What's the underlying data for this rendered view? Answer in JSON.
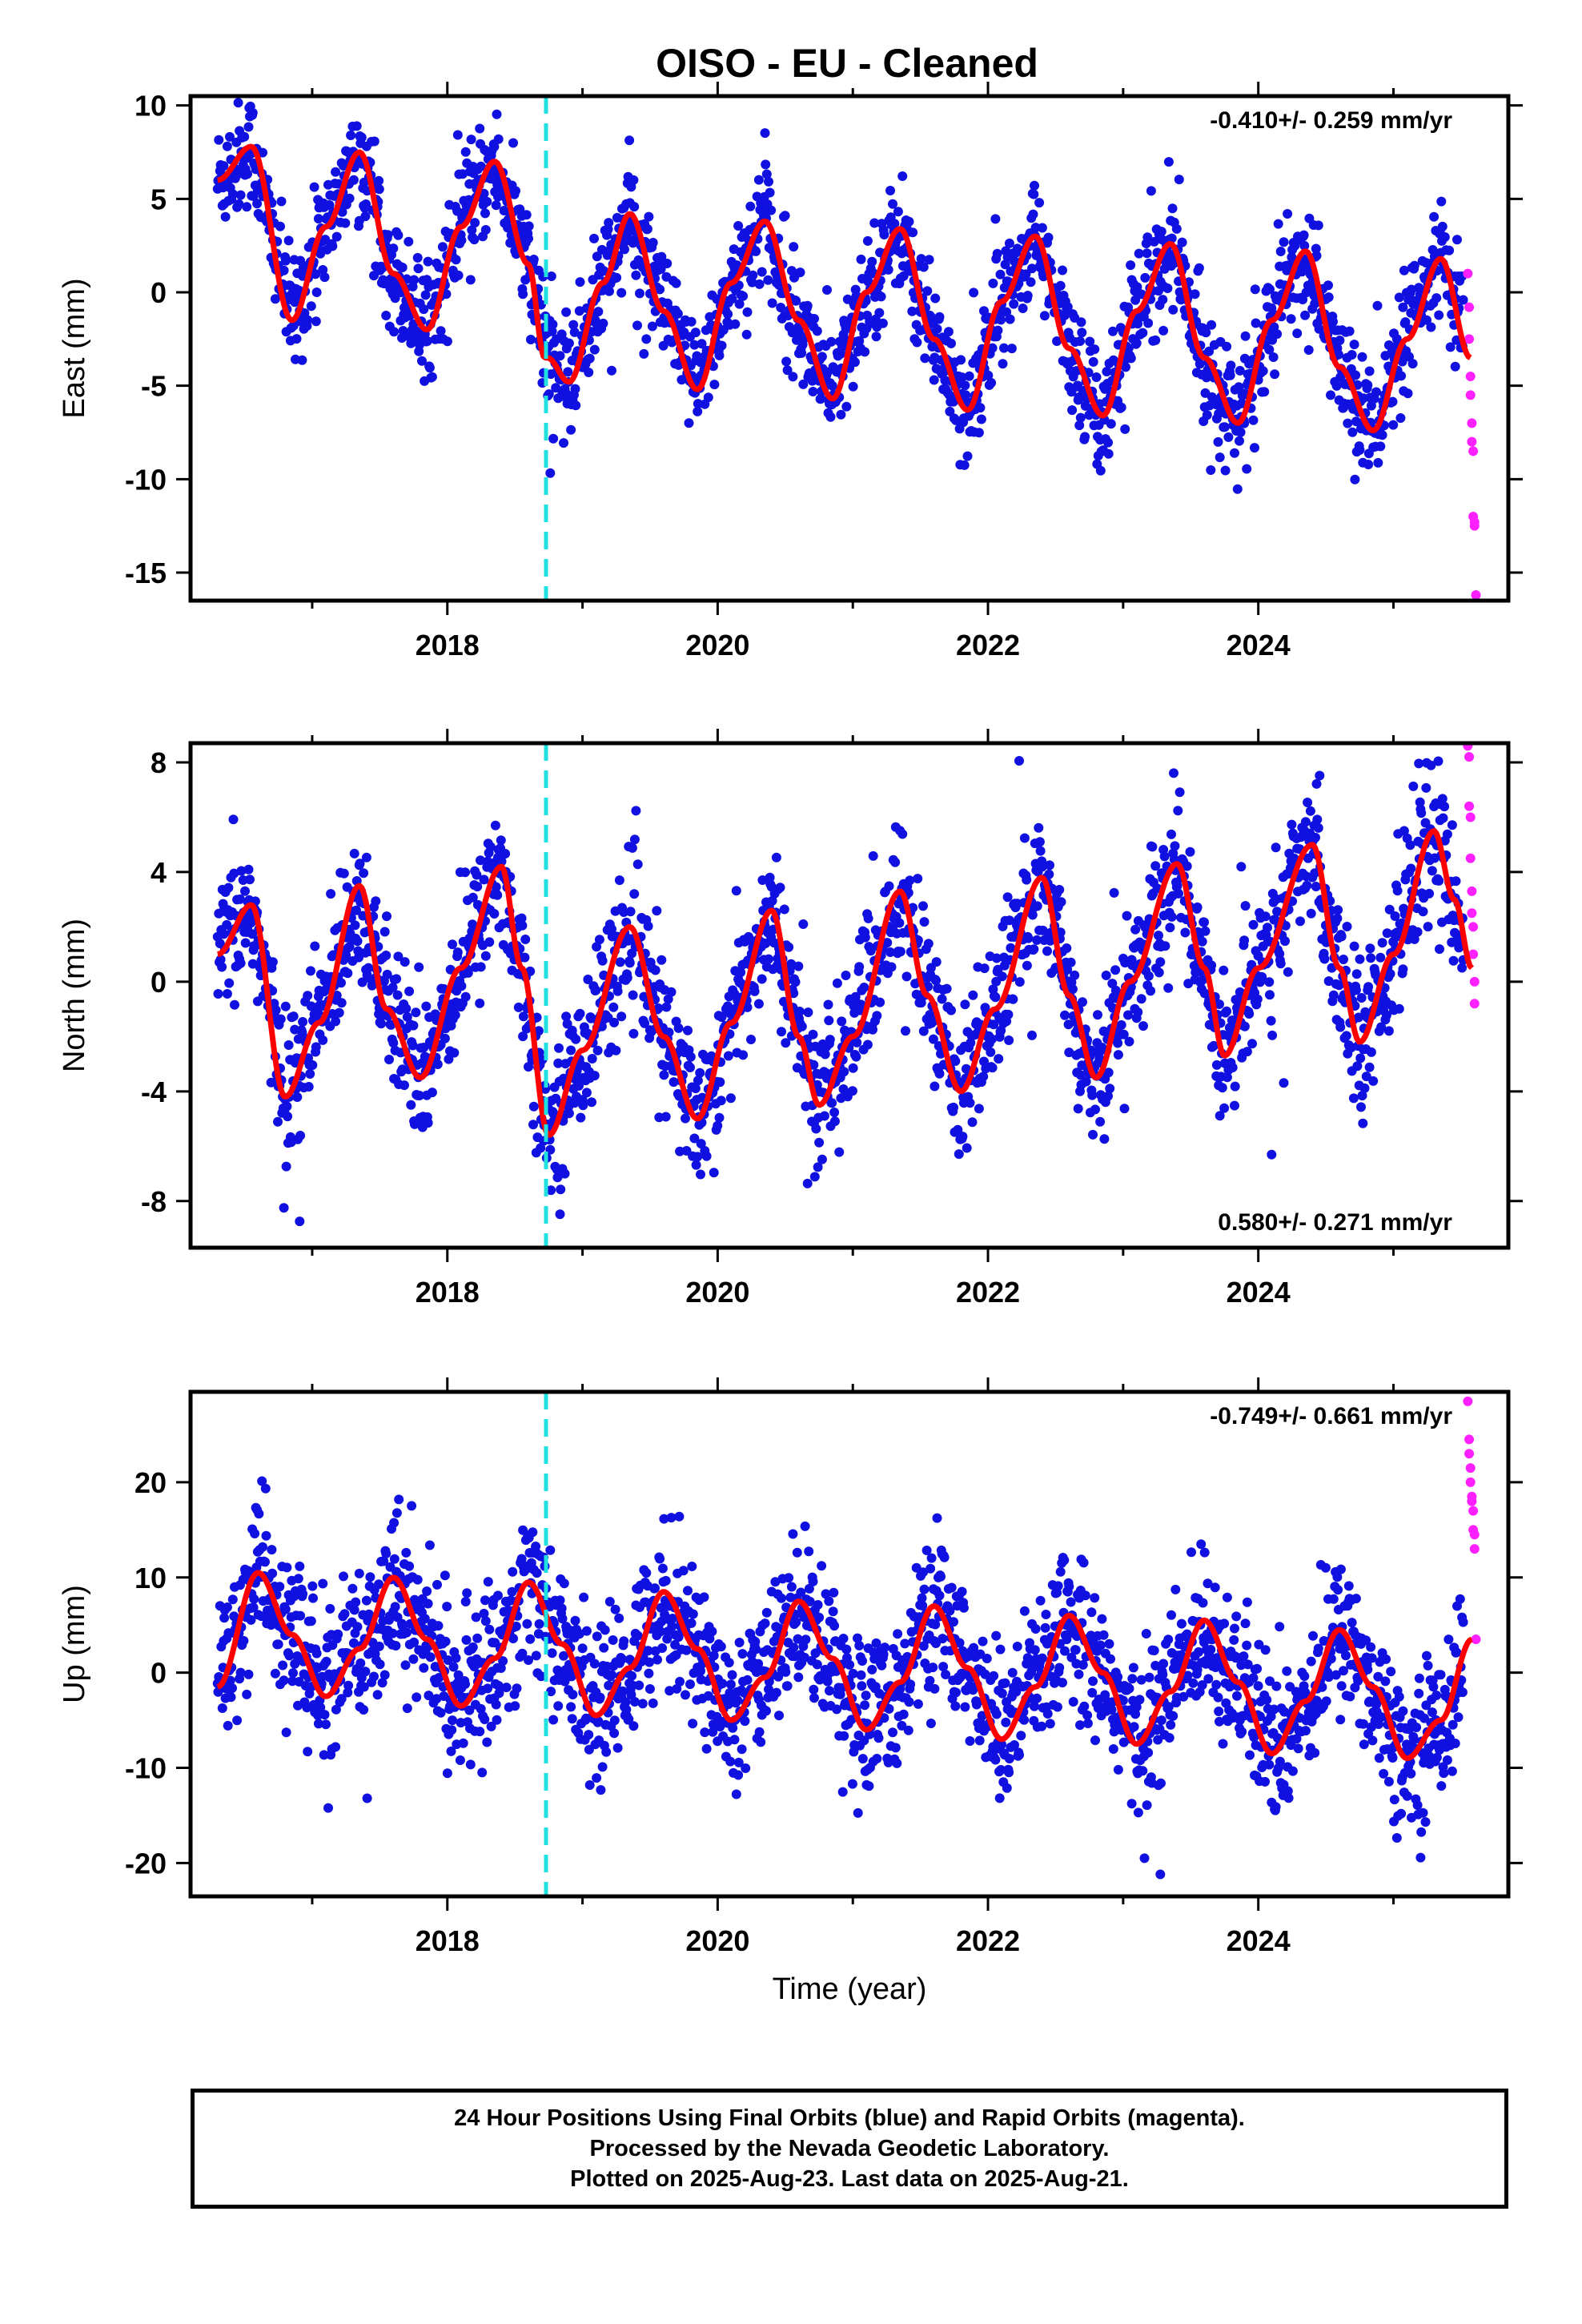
{
  "title": "OISO  - EU - Cleaned",
  "colors": {
    "final_orbits": "#1010e0",
    "rapid_orbits": "#ff20ff",
    "model": "#ff0000",
    "antenna_change": "#20e0e0"
  },
  "chart_data": [
    {
      "type": "scatter",
      "panel": "east",
      "ylabel": "East (mm)",
      "xlabel": "",
      "xlim": [
        2016.1,
        2025.85
      ],
      "ylim": [
        -16.5,
        10.5
      ],
      "yticks": [
        10,
        5,
        0,
        -5,
        -10,
        -15
      ],
      "xticks": [
        2018,
        2020,
        2022,
        2024
      ],
      "rate_text": "-0.410+/- 0.259 mm/yr",
      "rate_position": "top-right",
      "offset_epoch": 2018.73,
      "model": {
        "series": "red",
        "x": [
          2016.3,
          2016.55,
          2016.85,
          2017.1,
          2017.35,
          2017.6,
          2017.85,
          2018.1,
          2018.35,
          2018.6,
          2018.72,
          2018.74,
          2018.9,
          2019.15,
          2019.35,
          2019.6,
          2019.85,
          2020.1,
          2020.35,
          2020.6,
          2020.85,
          2021.1,
          2021.35,
          2021.6,
          2021.85,
          2022.1,
          2022.35,
          2022.6,
          2022.85,
          2023.1,
          2023.35,
          2023.6,
          2023.85,
          2024.1,
          2024.35,
          2024.6,
          2024.85,
          2025.1,
          2025.35,
          2025.57
        ],
        "y": [
          6.0,
          7.8,
          -1.5,
          3.5,
          7.5,
          1.0,
          -2.0,
          3.5,
          7.0,
          1.5,
          -3.5,
          -3.5,
          -4.8,
          0.5,
          4.2,
          -1.0,
          -5.2,
          0.5,
          3.8,
          -1.5,
          -5.7,
          0.0,
          3.4,
          -2.5,
          -6.3,
          -0.5,
          3.0,
          -3.0,
          -6.6,
          -1.0,
          2.6,
          -3.5,
          -7.0,
          -1.5,
          2.2,
          -4.0,
          -7.4,
          -2.5,
          1.8,
          -3.5
        ]
      },
      "final_points": {
        "start": 2016.3,
        "end": 2025.52,
        "scatter_mm": 1.5,
        "pattern": "annual signal amplitude ~5 mm, offset near 2018.73, downward drift after 2020.8"
      },
      "rapid_points": {
        "x": [
          2025.55,
          2025.56,
          2025.56,
          2025.57,
          2025.57,
          2025.58,
          2025.58,
          2025.59,
          2025.59,
          2025.6,
          2025.6,
          2025.61
        ],
        "y": [
          1.0,
          -0.8,
          -2.5,
          -4.5,
          -5.5,
          -7.0,
          -8.0,
          -8.5,
          -12.0,
          -12.3,
          -12.5,
          -16.2
        ]
      }
    },
    {
      "type": "scatter",
      "panel": "north",
      "ylabel": "North (mm)",
      "xlabel": "",
      "xlim": [
        2016.1,
        2025.85
      ],
      "ylim": [
        -9.7,
        8.7
      ],
      "yticks": [
        8,
        4,
        0,
        -4,
        -8
      ],
      "xticks": [
        2018,
        2020,
        2022,
        2024
      ],
      "rate_text": "0.580+/- 0.271 mm/yr",
      "rate_position": "bottom-right",
      "offset_epoch": 2018.73,
      "model": {
        "series": "red",
        "x": [
          2016.3,
          2016.55,
          2016.8,
          2017.05,
          2017.35,
          2017.55,
          2017.8,
          2018.1,
          2018.4,
          2018.55,
          2018.75,
          2019.0,
          2019.35,
          2019.6,
          2019.85,
          2020.1,
          2020.4,
          2020.6,
          2020.75,
          2021.0,
          2021.35,
          2021.55,
          2021.8,
          2022.05,
          2022.4,
          2022.6,
          2022.8,
          2023.05,
          2023.4,
          2023.6,
          2023.75,
          2024.0,
          2024.4,
          2024.6,
          2024.75,
          2025.0,
          2025.3,
          2025.45,
          2025.58
        ],
        "y": [
          1.0,
          2.8,
          -4.2,
          -1.5,
          3.5,
          -1.0,
          -3.5,
          0.5,
          4.2,
          0.5,
          -5.6,
          -2.5,
          2.0,
          -2.0,
          -5.0,
          -1.5,
          2.6,
          -2.0,
          -4.5,
          -2.0,
          3.3,
          -0.5,
          -4.0,
          -1.0,
          3.8,
          -0.5,
          -3.5,
          0.0,
          4.3,
          0.5,
          -2.7,
          0.5,
          5.0,
          0.5,
          -2.2,
          1.0,
          5.5,
          3.0,
          0.5
        ]
      },
      "final_points": {
        "start": 2016.3,
        "end": 2025.52,
        "scatter_mm": 1.3,
        "pattern": "annual signal amplitude ~4 mm, northward trend after 2024"
      },
      "rapid_points": {
        "x": [
          2025.55,
          2025.56,
          2025.56,
          2025.57,
          2025.57,
          2025.58,
          2025.58,
          2025.59,
          2025.59,
          2025.6,
          2025.6
        ],
        "y": [
          8.6,
          8.2,
          6.4,
          6.0,
          4.5,
          3.3,
          2.5,
          2.0,
          1.0,
          0.0,
          -0.8
        ]
      }
    },
    {
      "type": "scatter",
      "panel": "up",
      "ylabel": "Up (mm)",
      "xlabel": "Time (year)",
      "xlim": [
        2016.1,
        2025.85
      ],
      "ylim": [
        -23.5,
        29.5
      ],
      "yticks": [
        20,
        10,
        0,
        -10,
        -20
      ],
      "xticks": [
        2018,
        2020,
        2022,
        2024
      ],
      "rate_text": "-0.749+/- 0.661 mm/yr",
      "rate_position": "top-right",
      "offset_epoch": 2018.73,
      "model": {
        "series": "red",
        "x": [
          2016.3,
          2016.6,
          2016.85,
          2017.1,
          2017.35,
          2017.6,
          2017.85,
          2018.1,
          2018.35,
          2018.6,
          2018.85,
          2019.1,
          2019.35,
          2019.6,
          2019.85,
          2020.1,
          2020.35,
          2020.6,
          2020.85,
          2021.1,
          2021.35,
          2021.6,
          2021.85,
          2022.1,
          2022.35,
          2022.6,
          2022.85,
          2023.1,
          2023.35,
          2023.6,
          2023.85,
          2024.1,
          2024.35,
          2024.6,
          2024.85,
          2025.1,
          2025.35,
          2025.58
        ],
        "y": [
          -1.5,
          10.5,
          4.0,
          -2.5,
          2.5,
          10.0,
          3.5,
          -3.5,
          1.5,
          9.5,
          3.0,
          -4.5,
          0.5,
          8.5,
          2.5,
          -5.0,
          -0.5,
          7.5,
          1.5,
          -6.0,
          -1.0,
          7.0,
          0.5,
          -7.0,
          -1.5,
          6.0,
          0.0,
          -7.5,
          -2.0,
          5.5,
          -1.0,
          -8.5,
          -3.0,
          4.5,
          -1.5,
          -9.0,
          -5.0,
          3.5
        ]
      },
      "final_points": {
        "start": 2016.3,
        "end": 2025.52,
        "scatter_mm": 4.0,
        "pattern": "annual signal amplitude ~8 mm, slight downward drift"
      },
      "rapid_points": {
        "x": [
          2025.55,
          2025.56,
          2025.56,
          2025.57,
          2025.57,
          2025.58,
          2025.58,
          2025.59,
          2025.59,
          2025.6,
          2025.6,
          2025.61
        ],
        "y": [
          28.5,
          24.5,
          23.0,
          21.5,
          20.0,
          18.5,
          18.0,
          17.0,
          15.0,
          14.5,
          13.0,
          3.5
        ]
      }
    }
  ],
  "footer": {
    "line1": "24 Hour Positions Using Final Orbits (blue) and Rapid Orbits (magenta).",
    "line2": "Processed by the Nevada Geodetic Laboratory.",
    "line3": "Plotted on 2025-Aug-23. Last data on 2025-Aug-21."
  }
}
